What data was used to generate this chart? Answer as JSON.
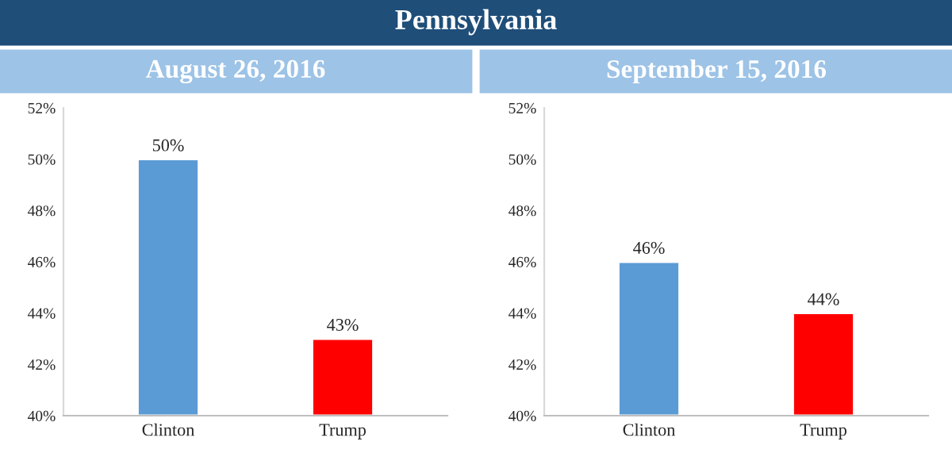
{
  "chart_data": [
    {
      "type": "bar",
      "title": "Pennsylvania",
      "subtitle": "August 26, 2016",
      "categories": [
        "Clinton",
        "Trump"
      ],
      "values": [
        50,
        43
      ],
      "colors": [
        "#5b9bd5",
        "#ff0000"
      ],
      "value_labels": [
        "50%",
        "43%"
      ],
      "ylim": [
        40,
        52
      ],
      "yticks": [
        {
          "value": 40,
          "label": "40%"
        },
        {
          "value": 42,
          "label": "42%"
        },
        {
          "value": 44,
          "label": "44%"
        },
        {
          "value": 46,
          "label": "46%"
        },
        {
          "value": 48,
          "label": "48%"
        },
        {
          "value": 50,
          "label": "50%"
        },
        {
          "value": 52,
          "label": "52%"
        }
      ]
    },
    {
      "type": "bar",
      "subtitle": "September 15, 2016",
      "categories": [
        "Clinton",
        "Trump"
      ],
      "values": [
        46,
        44
      ],
      "colors": [
        "#5b9bd5",
        "#ff0000"
      ],
      "value_labels": [
        "46%",
        "44%"
      ],
      "ylim": [
        40,
        52
      ],
      "yticks": [
        {
          "value": 40,
          "label": "40%"
        },
        {
          "value": 42,
          "label": "42%"
        },
        {
          "value": 44,
          "label": "44%"
        },
        {
          "value": 46,
          "label": "46%"
        },
        {
          "value": 48,
          "label": "48%"
        },
        {
          "value": 50,
          "label": "50%"
        },
        {
          "value": 52,
          "label": "52%"
        }
      ]
    }
  ]
}
